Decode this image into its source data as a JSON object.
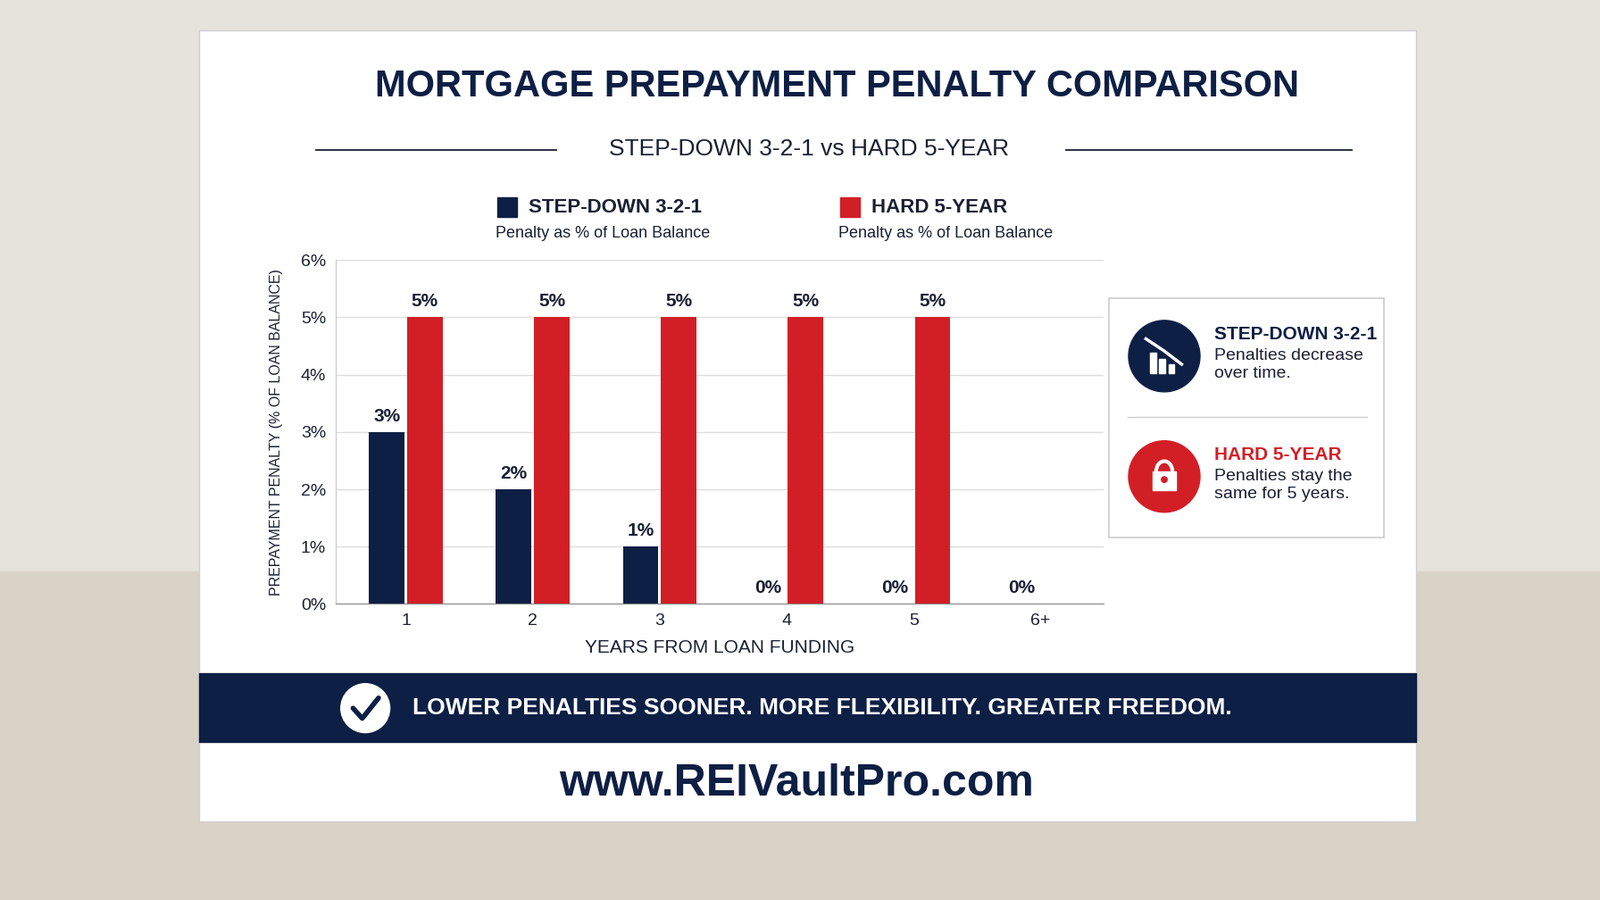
{
  "chart_data": {
    "type": "bar",
    "title": "MORTGAGE PREPAYMENT PENALTY COMPARISON",
    "subtitle": "STEP-DOWN 3-2-1 vs HARD 5-YEAR",
    "x_label": "YEARS FROM LOAN FUNDING",
    "y_label": "PREPAYMENT PENALTY (% OF LOAN BALANCE)",
    "categories": [
      "1",
      "2",
      "3",
      "4",
      "5",
      "6+"
    ],
    "series": [
      {
        "name": "STEP-DOWN 3-2-1",
        "description": "Penalty as % of Loan Balance",
        "color": "#0d1f44",
        "values": [
          3,
          2,
          1,
          0,
          0,
          0
        ],
        "value_labels": [
          "3%",
          "2%",
          "1%",
          "0%",
          "0%",
          "0%"
        ]
      },
      {
        "name": "HARD 5-YEAR",
        "description": "Penalty as % of Loan Balance",
        "color": "#d21f26",
        "values": [
          5,
          5,
          5,
          5,
          5,
          null
        ],
        "value_labels": [
          "5%",
          "5%",
          "5%",
          "5%",
          "5%",
          null
        ]
      }
    ],
    "ylim": [
      0,
      6
    ],
    "yticks": [
      {
        "value": 0,
        "label": "0%"
      },
      {
        "value": 1,
        "label": "1%"
      },
      {
        "value": 2,
        "label": "2%"
      },
      {
        "value": 3,
        "label": "3%"
      },
      {
        "value": 4,
        "label": "4%"
      },
      {
        "value": 5,
        "label": "5%"
      },
      {
        "value": 6,
        "label": "6%"
      }
    ],
    "grid": true,
    "data_labels": true,
    "callouts": [
      {
        "title": "STEP-DOWN 3-2-1",
        "text": "Penalties decrease over time."
      },
      {
        "title": "HARD 5-YEAR",
        "text": "Penalties stay the same for 5 years."
      }
    ],
    "banner": "LOWER PENALTIES SOONER. MORE FLEXIBILITY. GREATER FREEDOM.",
    "footer": "www.REIVaultPro.com"
  }
}
